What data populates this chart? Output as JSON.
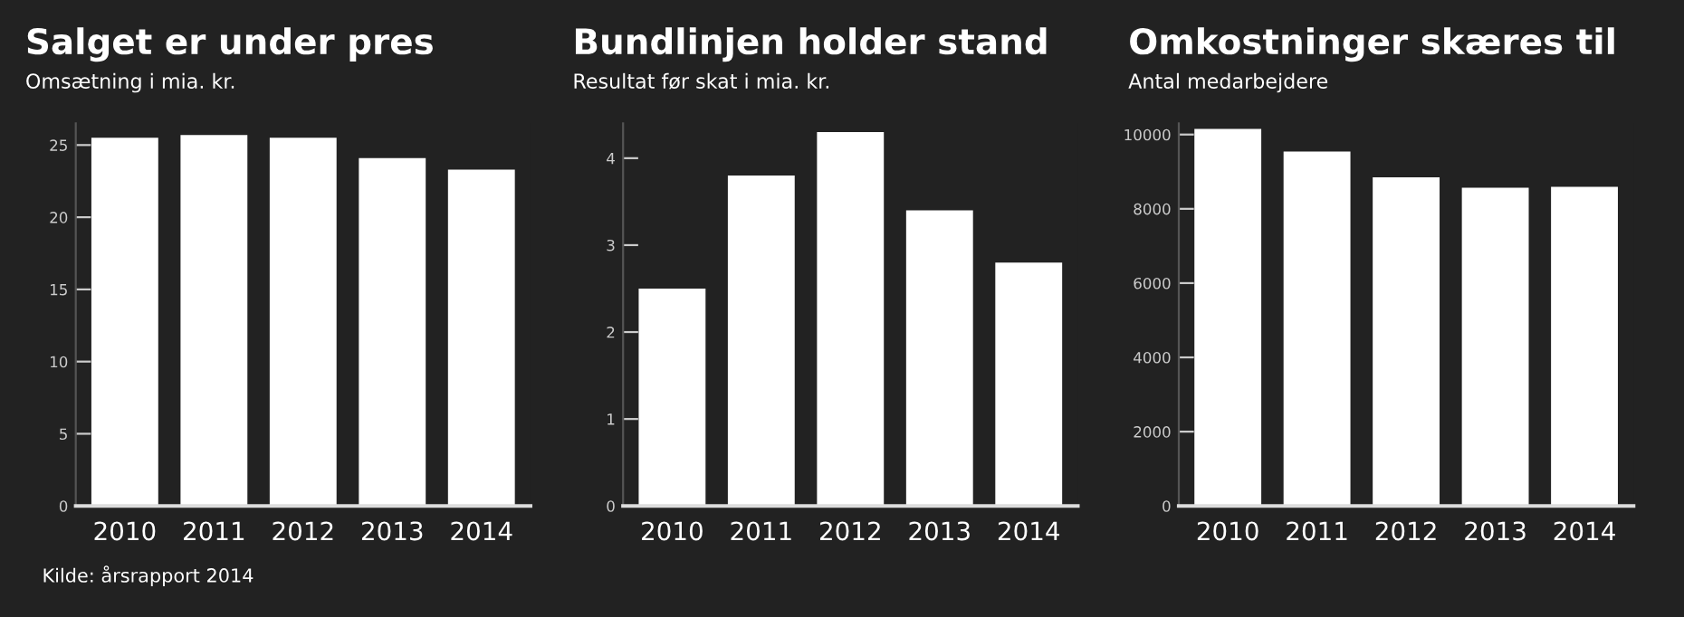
{
  "chart_data": [
    {
      "type": "bar",
      "title": "Salget er under pres",
      "subtitle": "Omsætning i mia. kr.",
      "categories": [
        "2010",
        "2011",
        "2012",
        "2013",
        "2014"
      ],
      "values": [
        25.5,
        25.7,
        25.5,
        24.1,
        23.3
      ],
      "color": "#ffffff",
      "ylim": [
        0,
        26.5
      ],
      "yticks": [
        0,
        5,
        10,
        15,
        20,
        25
      ],
      "grid": false,
      "annotations": [
        "Kilde: årsrapport 2014"
      ]
    },
    {
      "type": "bar",
      "title": "Bundlinjen holder stand",
      "subtitle": "Resultat før skat i mia. kr.",
      "categories": [
        "2010",
        "2011",
        "2012",
        "2013",
        "2014"
      ],
      "values": [
        2.5,
        3.8,
        4.3,
        3.4,
        2.8
      ],
      "color": "#ffffff",
      "ylim": [
        0,
        4.4
      ],
      "yticks": [
        0,
        1,
        2,
        3,
        4
      ],
      "grid": false
    },
    {
      "type": "bar",
      "title": "Omkostninger skæres til",
      "subtitle": "Antal medarbejdere",
      "categories": [
        "2010",
        "2011",
        "2012",
        "2013",
        "2014"
      ],
      "values": [
        10150,
        9540,
        8850,
        8570,
        8590
      ],
      "color": "#ffffff",
      "ylim": [
        0,
        10300
      ],
      "yticks": [
        0,
        2000,
        4000,
        6000,
        8000,
        10000
      ],
      "grid": false
    }
  ]
}
